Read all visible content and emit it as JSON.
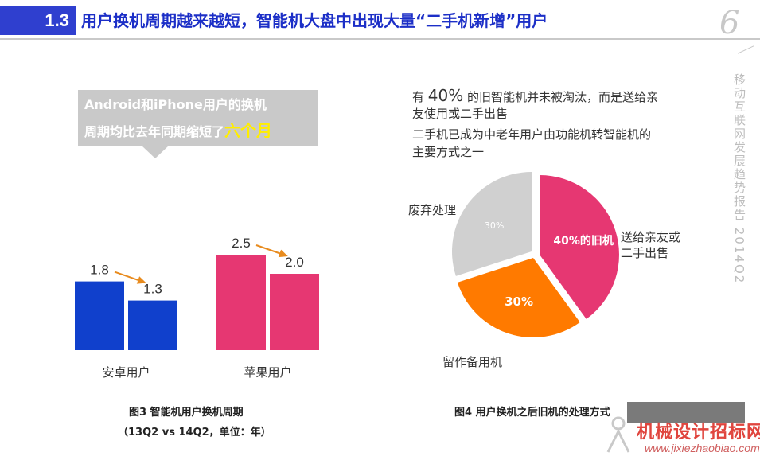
{
  "header": {
    "section_number": "1.3",
    "title": "用户换机周期越来越短，智能机大盘中出现大量“二手机新增”用户",
    "page_number": "6",
    "side_text": "移动互联网发展趋势报告 2014Q2"
  },
  "callout": {
    "line1": "Android和iPhone用户的换机",
    "line2_prefix": "周期均比去年同期缩短了",
    "line2_highlight": "六个月"
  },
  "fig3": {
    "caption": "图3 智能机用户换机周期",
    "subcaption": "（13Q2 vs 14Q2，单位：年）"
  },
  "fig4": {
    "caption": "图4 用户换机之后旧机的处理方式"
  },
  "right_text": {
    "line1_prefix": "有",
    "line1_big": "40%",
    "line1_suffix": "的旧智能机并未被淘汰，而是送给亲",
    "line2": "友使用或二手出售",
    "line3": "二手机已成为中老年用户由功能机转智能机的",
    "line4": "主要方式之一"
  },
  "pie_labels": {
    "discard": "废弃处理",
    "gift_line1": "送给亲友或",
    "gift_line2": "二手出售",
    "spare": "留作备用机"
  },
  "watermark": {
    "text": "机械设计招标网",
    "url": "www.jixiezhaobiao.com"
  },
  "chart_data": [
    {
      "type": "bar",
      "categories": [
        "安卓用户",
        "苹果用户"
      ],
      "series": [
        {
          "values": [
            1.8,
            2.5
          ],
          "color": "#1040cc"
        },
        {
          "values": [
            1.3,
            2.0
          ],
          "color": "#e63772"
        }
      ],
      "bar_colors": [
        [
          "#1040cc",
          "#1040cc"
        ],
        [
          "#e63772",
          "#e63772"
        ]
      ],
      "value_labels": [
        [
          "1.8",
          "1.3"
        ],
        [
          "2.5",
          "2.0"
        ]
      ],
      "arrow_color": "#e88b1e"
    },
    {
      "type": "pie",
      "slices": [
        {
          "label": "40%的旧机",
          "value": 40,
          "color": "#e63772"
        },
        {
          "label": "30%",
          "value": 30,
          "color": "#ff7a00"
        },
        {
          "label": "30%",
          "value": 30,
          "color": "#d0d0d0"
        }
      ]
    }
  ]
}
